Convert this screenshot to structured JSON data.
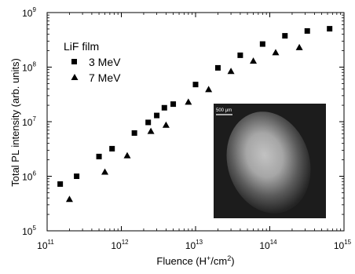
{
  "chart_data": {
    "type": "scatter",
    "xlabel": "Fluence (H",
    "xlabel_sup": "+",
    "xlabel_mid": "/cm",
    "xlabel_sup2": "2",
    "xlabel_end": ")",
    "ylabel": "Total PL intensity (arb. units)",
    "xscale": "log",
    "yscale": "log",
    "xlim": [
      100000000000.0,
      1000000000000000.0
    ],
    "ylim": [
      100000.0,
      1000000000.0
    ],
    "x_tick_labels": [
      {
        "base": "10",
        "exp": "11",
        "value": 100000000000.0
      },
      {
        "base": "10",
        "exp": "12",
        "value": 1000000000000.0
      },
      {
        "base": "10",
        "exp": "13",
        "value": 10000000000000.0
      },
      {
        "base": "10",
        "exp": "14",
        "value": 100000000000000.0
      },
      {
        "base": "10",
        "exp": "15",
        "value": 1000000000000000.0
      }
    ],
    "y_tick_labels": [
      {
        "base": "10",
        "exp": "5",
        "value": 100000.0
      },
      {
        "base": "10",
        "exp": "6",
        "value": 1000000.0
      },
      {
        "base": "10",
        "exp": "7",
        "value": 10000000.0
      },
      {
        "base": "10",
        "exp": "8",
        "value": 100000000.0
      },
      {
        "base": "10",
        "exp": "9",
        "value": 1000000000.0
      }
    ],
    "legend_title": "LiF film",
    "legend_position": "top-left",
    "grid": false,
    "series": [
      {
        "name": "3 MeV",
        "marker": "square",
        "x": [
          150000000000.0,
          250000000000.0,
          500000000000.0,
          750000000000.0,
          1500000000000.0,
          2300000000000.0,
          3000000000000.0,
          3800000000000.0,
          5000000000000.0,
          10000000000000.0,
          20000000000000.0,
          40000000000000.0,
          80000000000000.0,
          160000000000000.0,
          320000000000000.0,
          640000000000000.0
        ],
        "y": [
          720000.0,
          1000000.0,
          2300000.0,
          3200000.0,
          6200000.0,
          9700000.0,
          13000000.0,
          18000000.0,
          21000000.0,
          48000000.0,
          97000000.0,
          165000000.0,
          265000000.0,
          375000000.0,
          460000000.0,
          505000000.0
        ]
      },
      {
        "name": "7 MeV",
        "marker": "triangle",
        "x": [
          200000000000.0,
          600000000000.0,
          1200000000000.0,
          2500000000000.0,
          4000000000000.0,
          8000000000000.0,
          15000000000000.0,
          30000000000000.0,
          60000000000000.0,
          120000000000000.0,
          250000000000000.0
        ],
        "y": [
          380000.0,
          1200000.0,
          2400000.0,
          6700000.0,
          8700000.0,
          23000000.0,
          39000000.0,
          84000000.0,
          130000000.0,
          185000000.0,
          230000000.0
        ]
      }
    ],
    "inset": {
      "scale_bar_label": "500 μm"
    }
  }
}
